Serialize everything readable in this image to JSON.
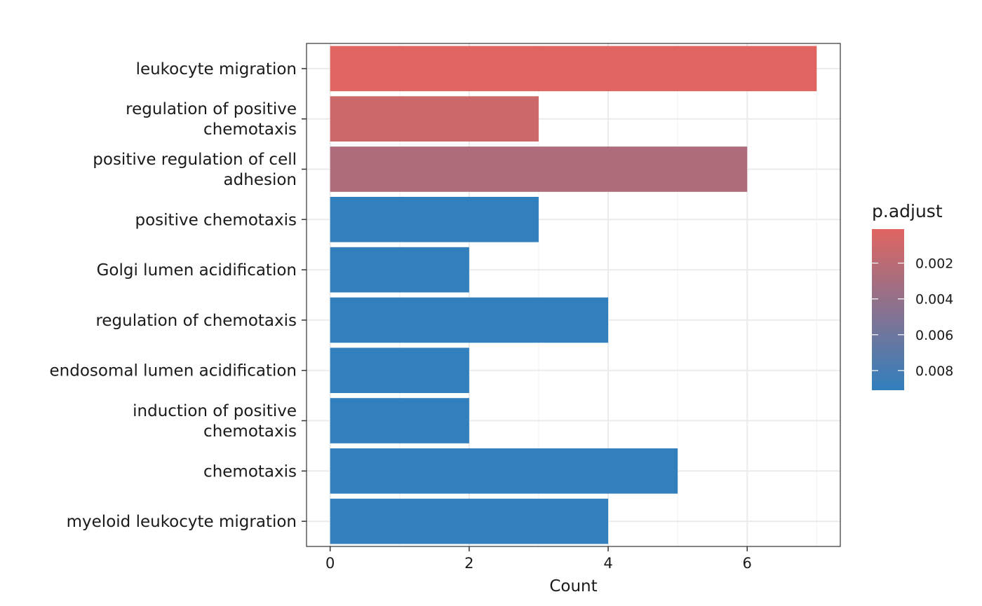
{
  "chart_data": {
    "type": "bar",
    "orientation": "horizontal",
    "categories": [
      "leukocyte migration",
      "regulation of positive\nchemotaxis",
      "positive regulation of cell\nadhesion",
      "positive chemotaxis",
      "Golgi lumen acidification",
      "regulation of chemotaxis",
      "endosomal lumen acidification",
      "induction of positive\nchemotaxis",
      "chemotaxis",
      "myeloid leukocyte migration"
    ],
    "values": [
      7,
      3,
      6,
      3,
      2,
      4,
      2,
      2,
      5,
      4
    ],
    "p_adjust": [
      0.0001,
      0.0011,
      0.0026,
      0.0091,
      0.0091,
      0.0091,
      0.0091,
      0.0091,
      0.0091,
      0.0091
    ],
    "xlabel": "Count",
    "ylabel": "",
    "xlim": [
      -0.34,
      7.34
    ],
    "x_ticks": [
      "0",
      "2",
      "4",
      "6"
    ],
    "grid": true,
    "legend": {
      "title": "p.adjust",
      "placement": "right",
      "type": "colorbar",
      "range": [
        0.0001,
        0.0091
      ],
      "ticks": [
        0.002,
        0.004,
        0.006,
        0.008
      ],
      "tick_labels": [
        "0.002",
        "0.004",
        "0.006",
        "0.008"
      ],
      "color_low": "#e06560",
      "color_high": "#317fbd"
    }
  }
}
